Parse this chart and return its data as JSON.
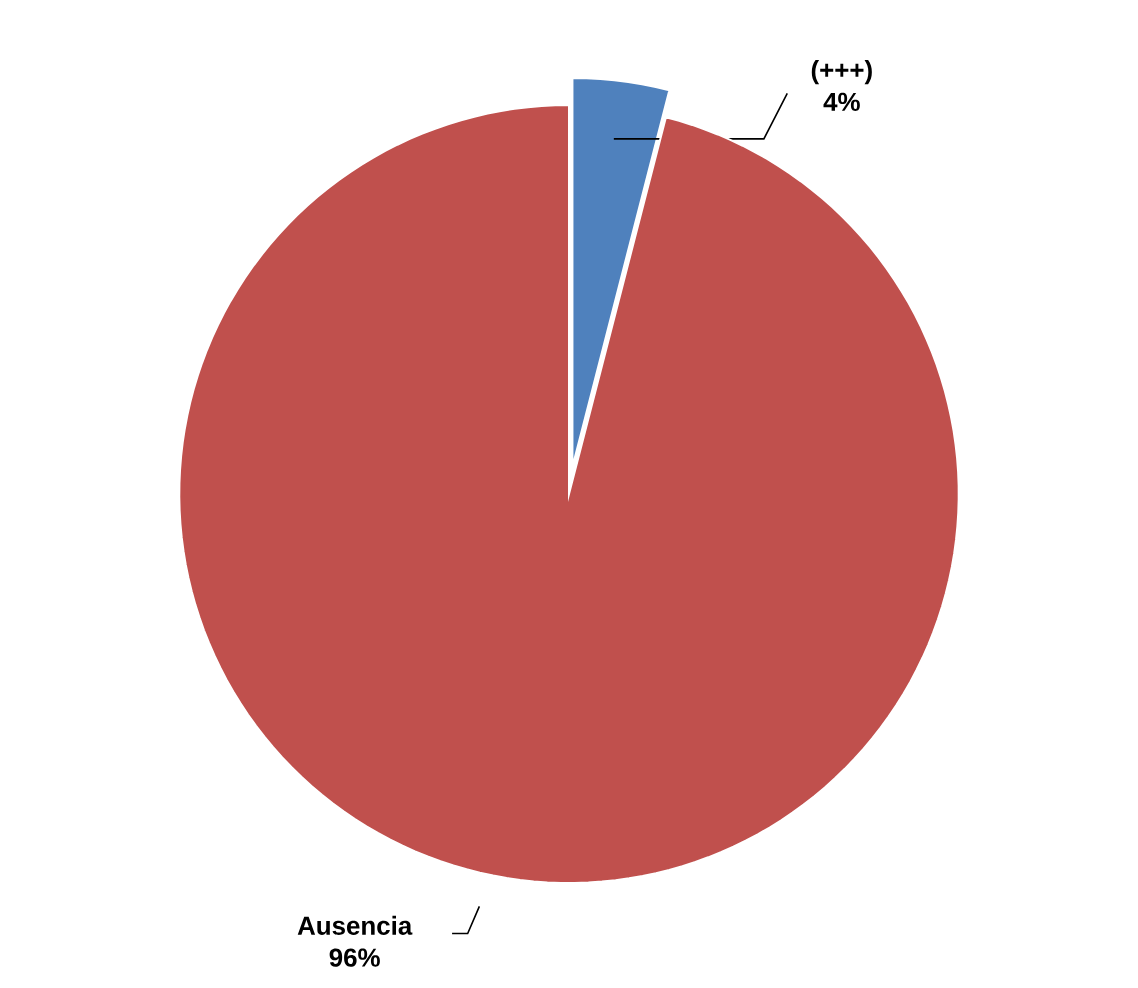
{
  "chart_data": {
    "type": "pie",
    "categories": [
      "(+++)",
      "Ausencia"
    ],
    "values": [
      4,
      96
    ],
    "colors": [
      "#4f81bd",
      "#c0504d"
    ],
    "value_labels": [
      "4%",
      "96%"
    ]
  }
}
